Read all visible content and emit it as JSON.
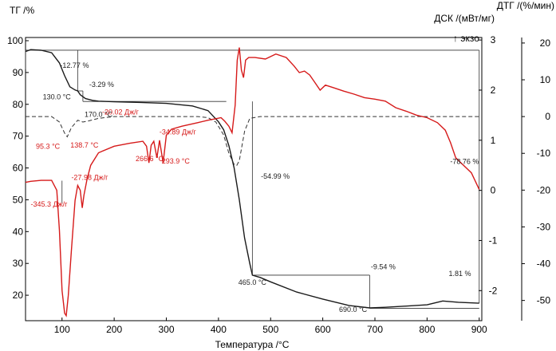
{
  "chart_data": {
    "type": "line",
    "title": "",
    "xlabel": "Температура /°C",
    "ylabel_left": "ТГ /%",
    "ylabel_right_dtg": "ДТГ /(%/мин)",
    "ylabel_right_dsc": "ДСК /(мВт/мг)",
    "exo_label": "↑ экзо",
    "xlim": [
      30,
      905
    ],
    "x_ticks": [
      100,
      200,
      300,
      400,
      500,
      600,
      700,
      800,
      900
    ],
    "y_tg_lim": [
      12,
      101
    ],
    "y_tg_ticks": [
      20,
      30,
      40,
      50,
      60,
      70,
      80,
      90,
      100
    ],
    "y_dsc_lim": [
      -2.6,
      3.05
    ],
    "y_dsc_ticks": [
      -2,
      -1,
      0,
      1,
      2,
      3
    ],
    "y_dtg_lim": [
      -55.5,
      21.5
    ],
    "y_dtg_ticks": [
      -50,
      -40,
      -30,
      -20,
      -10,
      0,
      10,
      20
    ],
    "colors": {
      "tg": "#1a1a1a",
      "dtg": "#333333",
      "dsc": "#d61a1a",
      "annotation": "#333333"
    },
    "series": [
      {
        "name": "ТГ",
        "axis": "tg",
        "style": "solid",
        "x": [
          30,
          40,
          60,
          80,
          95,
          105,
          115,
          125,
          130,
          135,
          145,
          160,
          170,
          200,
          250,
          300,
          350,
          380,
          400,
          410,
          420,
          430,
          440,
          450,
          460,
          465,
          480,
          500,
          550,
          600,
          650,
          690,
          720,
          760,
          800,
          830,
          860,
          900
        ],
        "values": [
          96.6,
          97.2,
          97.0,
          96.2,
          93.0,
          89.0,
          85.5,
          84.5,
          84.2,
          83.0,
          81.8,
          81.2,
          81.0,
          80.8,
          80.6,
          80.3,
          79.5,
          78.0,
          74.5,
          72.0,
          67.0,
          60.0,
          50.0,
          38.0,
          30.0,
          26.3,
          25.6,
          24.2,
          21.0,
          18.8,
          16.8,
          16.0,
          16.2,
          16.6,
          17.0,
          18.2,
          17.8,
          17.5
        ]
      },
      {
        "name": "ДТГ",
        "axis": "dtg",
        "style": "dashed",
        "x": [
          30,
          80,
          95,
          105,
          110,
          118,
          130,
          140,
          150,
          170,
          200,
          250,
          300,
          360,
          380,
          395,
          410,
          420,
          430,
          435,
          440,
          445,
          450,
          460,
          480,
          500,
          600,
          700,
          800,
          900
        ],
        "values": [
          0,
          0,
          -1.5,
          -4.5,
          -5.5,
          -3.0,
          -1.0,
          -1.5,
          -1.2,
          -0.5,
          0,
          0,
          0,
          0,
          -0.3,
          -1.5,
          -5.0,
          -10.0,
          -13.0,
          -13.3,
          -12.0,
          -8.0,
          -4.0,
          -0.5,
          0,
          0,
          0,
          0,
          0,
          0
        ]
      },
      {
        "name": "ДСК",
        "axis": "dsc",
        "style": "solid",
        "x": [
          30,
          40,
          60,
          80,
          90,
          95,
          100,
          105,
          108,
          112,
          118,
          125,
          130,
          135,
          138.7,
          142,
          148,
          155,
          170,
          200,
          230,
          255,
          262,
          266.6,
          271,
          276,
          282,
          287,
          293.9,
          300,
          310,
          330,
          360,
          380,
          395,
          405,
          412,
          420,
          426,
          432,
          436,
          440,
          444,
          448,
          452,
          458,
          470,
          490,
          510,
          530,
          545,
          555,
          565,
          575,
          585,
          595,
          605,
          620,
          640,
          660,
          680,
          700,
          720,
          740,
          760,
          780,
          800,
          820,
          835,
          845,
          855,
          870,
          885,
          900
        ],
        "values": [
          0.16,
          0.18,
          0.2,
          0.2,
          0.0,
          -0.8,
          -2.0,
          -2.45,
          -2.5,
          -2.1,
          -1.2,
          -0.2,
          0.1,
          0.0,
          -0.35,
          -0.1,
          0.22,
          0.5,
          0.75,
          0.88,
          0.94,
          0.98,
          0.88,
          0.55,
          0.9,
          0.98,
          0.65,
          1.0,
          0.55,
          1.1,
          1.22,
          1.28,
          1.35,
          1.4,
          1.43,
          1.45,
          1.38,
          1.28,
          1.15,
          1.7,
          2.6,
          2.85,
          2.4,
          2.25,
          2.6,
          2.65,
          2.65,
          2.62,
          2.72,
          2.65,
          2.48,
          2.35,
          2.38,
          2.3,
          2.15,
          2.0,
          2.1,
          2.05,
          1.98,
          1.92,
          1.85,
          1.82,
          1.78,
          1.65,
          1.58,
          1.5,
          1.45,
          1.35,
          1.2,
          0.95,
          0.65,
          0.5,
          0.35,
          0.02
        ]
      }
    ],
    "annotations": [
      {
        "text": "-12.77 %",
        "x": 124,
        "y_tg": 91.5,
        "color": "black"
      },
      {
        "text": "-3.29 %",
        "x": 176,
        "y_tg": 85.5,
        "color": "black"
      },
      {
        "text": "130.0 °C",
        "x": 90,
        "y_tg": 81.6,
        "color": "black"
      },
      {
        "text": "170.0 °C",
        "x": 170,
        "y_tg": 76.0,
        "color": "black"
      },
      {
        "text": "-20.02 Дж/г",
        "x": 212,
        "y_tg": 76.8,
        "color": "red"
      },
      {
        "text": "-34.89 Дж/г",
        "x": 322,
        "y_tg": 70.6,
        "color": "red"
      },
      {
        "text": "95.3 °C",
        "x": 73,
        "y_tg": 66.0,
        "color": "red"
      },
      {
        "text": "138.7 °C",
        "x": 143,
        "y_tg": 66.4,
        "color": "red"
      },
      {
        "text": "266.6 °C",
        "x": 268,
        "y_tg": 62.2,
        "color": "red"
      },
      {
        "text": "293.9 °C",
        "x": 318,
        "y_tg": 61.4,
        "color": "red"
      },
      {
        "text": "-27.98 Дж/г",
        "x": 153,
        "y_tg": 56.2,
        "color": "red"
      },
      {
        "text": "-345.3 Дж/г",
        "x": 75,
        "y_tg": 47.9,
        "color": "red"
      },
      {
        "text": "-54.99 %",
        "x": 509,
        "y_tg": 56.6,
        "color": "black"
      },
      {
        "text": "-78.76 %",
        "x": 872,
        "y_tg": 61.3,
        "color": "black"
      },
      {
        "text": "465.0 °C",
        "x": 465,
        "y_tg": 23.3,
        "color": "black"
      },
      {
        "text": "-9.54 %",
        "x": 716,
        "y_tg": 28.2,
        "color": "black"
      },
      {
        "text": "1.81 %",
        "x": 863,
        "y_tg": 26.0,
        "color": "black"
      },
      {
        "text": "690.0 °C",
        "x": 658,
        "y_tg": 14.8,
        "color": "black"
      }
    ]
  }
}
